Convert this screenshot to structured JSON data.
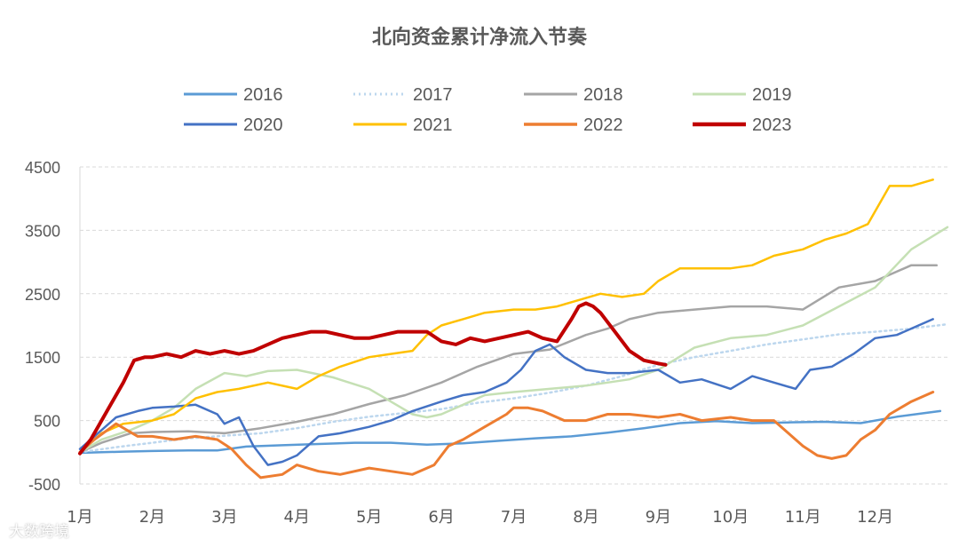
{
  "chart_data": {
    "type": "line",
    "title": "北向资金累计净流入节奏",
    "xlabel": "",
    "ylabel": "",
    "ylim": [
      -500,
      4500
    ],
    "y_ticks": [
      "4500",
      "3500",
      "2500",
      "1500",
      "500",
      "-500"
    ],
    "x_ticks": [
      "1月",
      "2月",
      "3月",
      "4月",
      "5月",
      "6月",
      "7月",
      "8月",
      "9月",
      "10月",
      "11月",
      "12月"
    ],
    "x_axis_value_unit": "month (1.0 = start of January)",
    "grid": "horizontal dashed",
    "legend_placement": "top",
    "series": [
      {
        "name": "2016",
        "color": "#5b9bd5",
        "style": "solid",
        "width": 2.5,
        "x": [
          1.0,
          1.3,
          1.6,
          2.0,
          2.5,
          2.9,
          3.3,
          3.8,
          4.3,
          4.8,
          5.3,
          5.8,
          6.3,
          6.8,
          7.3,
          7.8,
          8.3,
          8.8,
          9.3,
          9.8,
          10.3,
          10.8,
          11.3,
          11.8,
          12.3,
          12.7,
          12.9
        ],
        "y": [
          -10,
          0,
          10,
          20,
          30,
          30,
          90,
          110,
          130,
          150,
          150,
          120,
          140,
          180,
          220,
          250,
          310,
          380,
          460,
          490,
          460,
          470,
          480,
          460,
          560,
          620,
          650
        ]
      },
      {
        "name": "2017",
        "color": "#bdd7ee",
        "style": "dotted",
        "width": 2.5,
        "x": [
          1.0,
          1.5,
          2.0,
          2.5,
          3.0,
          3.5,
          4.0,
          4.5,
          5.0,
          5.5,
          6.0,
          6.5,
          7.0,
          7.5,
          8.0,
          8.5,
          9.0,
          9.5,
          10.0,
          10.5,
          11.0,
          11.5,
          12.0,
          12.5,
          13.0
        ],
        "y": [
          0,
          80,
          150,
          220,
          260,
          300,
          380,
          480,
          560,
          620,
          680,
          780,
          850,
          940,
          1050,
          1200,
          1380,
          1500,
          1600,
          1700,
          1780,
          1860,
          1900,
          1950,
          2020
        ]
      },
      {
        "name": "2018",
        "color": "#a5a5a5",
        "style": "solid",
        "width": 2.5,
        "x": [
          1.0,
          1.3,
          1.7,
          2.0,
          2.5,
          3.0,
          3.5,
          4.0,
          4.5,
          5.0,
          5.5,
          6.0,
          6.5,
          7.0,
          7.5,
          8.0,
          8.3,
          8.6,
          9.0,
          9.5,
          10.0,
          10.5,
          11.0,
          11.5,
          12.0,
          12.5,
          12.85
        ],
        "y": [
          0,
          150,
          300,
          320,
          330,
          300,
          380,
          480,
          600,
          760,
          900,
          1100,
          1350,
          1550,
          1620,
          1850,
          1950,
          2100,
          2200,
          2250,
          2300,
          2300,
          2250,
          2600,
          2700,
          2950,
          2950
        ]
      },
      {
        "name": "2019",
        "color": "#c5e0b4",
        "style": "solid",
        "width": 2.5,
        "x": [
          1.0,
          1.3,
          1.7,
          2.0,
          2.3,
          2.6,
          3.0,
          3.3,
          3.6,
          4.0,
          4.5,
          5.0,
          5.3,
          5.6,
          5.8,
          6.0,
          6.3,
          6.6,
          7.0,
          7.5,
          8.0,
          8.3,
          8.6,
          9.0,
          9.5,
          10.0,
          10.5,
          11.0,
          11.5,
          12.0,
          12.5,
          13.0
        ],
        "y": [
          0,
          200,
          350,
          500,
          700,
          1000,
          1250,
          1200,
          1280,
          1300,
          1180,
          1000,
          800,
          600,
          550,
          600,
          750,
          900,
          950,
          1000,
          1050,
          1100,
          1150,
          1300,
          1650,
          1800,
          1850,
          2000,
          2300,
          2600,
          3200,
          3550
        ]
      },
      {
        "name": "2020",
        "color": "#4472c4",
        "style": "solid",
        "width": 2.5,
        "x": [
          1.0,
          1.2,
          1.5,
          1.8,
          2.0,
          2.3,
          2.6,
          2.9,
          3.0,
          3.2,
          3.4,
          3.6,
          3.8,
          4.0,
          4.3,
          4.6,
          5.0,
          5.3,
          5.6,
          6.0,
          6.3,
          6.6,
          6.9,
          7.1,
          7.3,
          7.5,
          7.7,
          8.0,
          8.3,
          8.6,
          9.0,
          9.3,
          9.6,
          10.0,
          10.3,
          10.6,
          10.9,
          11.1,
          11.4,
          11.7,
          12.0,
          12.3,
          12.6,
          12.8
        ],
        "y": [
          50,
          250,
          550,
          650,
          700,
          720,
          750,
          600,
          450,
          550,
          100,
          -200,
          -150,
          -50,
          250,
          300,
          400,
          500,
          650,
          800,
          900,
          950,
          1100,
          1300,
          1600,
          1700,
          1500,
          1300,
          1250,
          1250,
          1300,
          1100,
          1150,
          1000,
          1200,
          1100,
          1000,
          1300,
          1350,
          1550,
          1800,
          1850,
          2000,
          2100
        ]
      },
      {
        "name": "2021",
        "color": "#ffc000",
        "style": "solid",
        "width": 2.5,
        "x": [
          1.0,
          1.3,
          1.6,
          2.0,
          2.3,
          2.6,
          2.9,
          3.2,
          3.6,
          4.0,
          4.3,
          4.6,
          5.0,
          5.3,
          5.6,
          5.8,
          6.0,
          6.3,
          6.6,
          7.0,
          7.3,
          7.6,
          7.9,
          8.2,
          8.5,
          8.8,
          9.0,
          9.3,
          9.6,
          10.0,
          10.3,
          10.6,
          11.0,
          11.3,
          11.6,
          11.9,
          12.2,
          12.5,
          12.8
        ],
        "y": [
          0,
          300,
          450,
          500,
          600,
          850,
          950,
          1000,
          1100,
          1000,
          1200,
          1350,
          1500,
          1550,
          1600,
          1850,
          2000,
          2100,
          2200,
          2250,
          2250,
          2300,
          2400,
          2500,
          2450,
          2500,
          2700,
          2900,
          2900,
          2900,
          2950,
          3100,
          3200,
          3350,
          3450,
          3600,
          4200,
          4200,
          4300
        ]
      },
      {
        "name": "2022",
        "color": "#ed7d31",
        "style": "solid",
        "width": 3,
        "x": [
          1.0,
          1.2,
          1.5,
          1.8,
          2.0,
          2.3,
          2.6,
          2.9,
          3.1,
          3.3,
          3.5,
          3.8,
          4.0,
          4.3,
          4.6,
          5.0,
          5.3,
          5.6,
          5.9,
          6.1,
          6.3,
          6.6,
          6.9,
          7.0,
          7.2,
          7.4,
          7.7,
          8.0,
          8.3,
          8.6,
          9.0,
          9.3,
          9.6,
          10.0,
          10.3,
          10.6,
          10.8,
          11.0,
          11.2,
          11.4,
          11.6,
          11.8,
          12.0,
          12.2,
          12.5,
          12.8
        ],
        "y": [
          0,
          200,
          450,
          250,
          250,
          200,
          250,
          200,
          50,
          -200,
          -400,
          -350,
          -200,
          -300,
          -350,
          -250,
          -300,
          -350,
          -200,
          100,
          200,
          400,
          600,
          700,
          700,
          650,
          500,
          500,
          600,
          600,
          550,
          600,
          500,
          550,
          500,
          500,
          300,
          100,
          -50,
          -100,
          -50,
          200,
          350,
          600,
          800,
          950
        ]
      },
      {
        "name": "2023",
        "color": "#c00000",
        "style": "solid",
        "width": 4,
        "x": [
          1.0,
          1.15,
          1.3,
          1.45,
          1.6,
          1.75,
          1.9,
          2.0,
          2.2,
          2.4,
          2.6,
          2.8,
          3.0,
          3.2,
          3.4,
          3.6,
          3.8,
          4.0,
          4.2,
          4.4,
          4.6,
          4.8,
          5.0,
          5.2,
          5.4,
          5.6,
          5.8,
          6.0,
          6.2,
          6.4,
          6.6,
          6.8,
          7.0,
          7.2,
          7.4,
          7.6,
          7.8,
          7.9,
          8.0,
          8.1,
          8.2,
          8.4,
          8.6,
          8.8,
          9.0,
          9.1
        ],
        "y": [
          -20,
          200,
          500,
          800,
          1100,
          1450,
          1500,
          1500,
          1550,
          1500,
          1600,
          1550,
          1600,
          1550,
          1600,
          1700,
          1800,
          1850,
          1900,
          1900,
          1850,
          1800,
          1800,
          1850,
          1900,
          1900,
          1900,
          1750,
          1700,
          1800,
          1750,
          1800,
          1850,
          1900,
          1800,
          1750,
          2100,
          2300,
          2350,
          2300,
          2200,
          1900,
          1600,
          1450,
          1400,
          1380
        ]
      }
    ]
  },
  "watermark": "大数跨境"
}
